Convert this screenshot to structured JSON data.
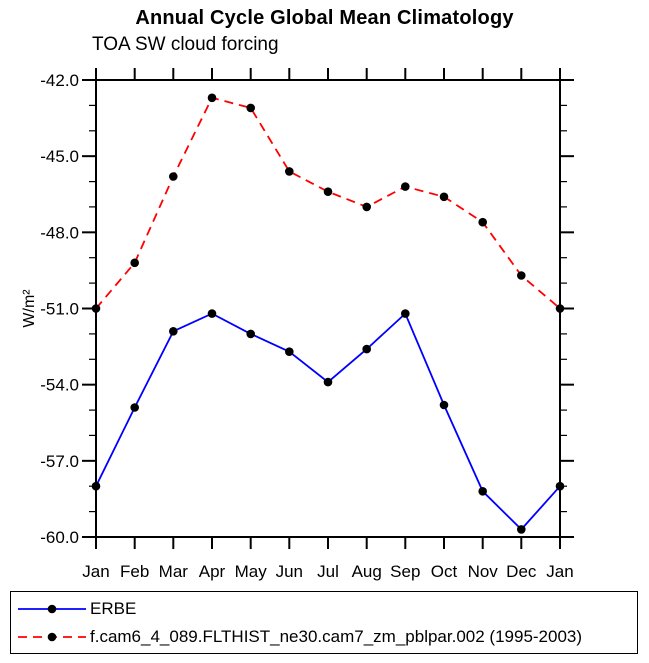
{
  "chart_data": {
    "type": "line",
    "title": "Annual Cycle Global Mean Climatology",
    "subtitle": "TOA SW cloud forcing",
    "ylabel": "W/m²",
    "xlabel": "",
    "categories": [
      "Jan",
      "Feb",
      "Mar",
      "Apr",
      "May",
      "Jun",
      "Jul",
      "Aug",
      "Sep",
      "Oct",
      "Nov",
      "Dec",
      "Jan"
    ],
    "ylim": [
      -60.0,
      -42.0
    ],
    "ytick_major": 3.0,
    "ytick_minor": 1.0,
    "ytick_labels": [
      "-42.0",
      "-45.0",
      "-48.0",
      "-51.0",
      "-54.0",
      "-57.0",
      "-60.0"
    ],
    "grid": false,
    "legend_position": "bottom",
    "colors": {
      "erbe": "#0000ff",
      "model": "#ff0000",
      "marker": "#000000",
      "axis": "#000000"
    },
    "series": [
      {
        "name": "ERBE",
        "color": "#0000ff",
        "style": "solid",
        "marker": "circle",
        "marker_color": "#000000",
        "values": [
          -58.0,
          -54.9,
          -51.9,
          -51.2,
          -52.0,
          -52.7,
          -53.9,
          -52.6,
          -51.2,
          -54.8,
          -58.2,
          -59.7,
          -58.0
        ]
      },
      {
        "name": "f.cam6_4_089.FLTHIST_ne30.cam7_zm_pblpar.002 (1995-2003)",
        "color": "#ff0000",
        "style": "dashed",
        "marker": "circle",
        "marker_color": "#000000",
        "values": [
          -51.0,
          -49.2,
          -45.8,
          -42.7,
          -43.1,
          -45.6,
          -46.4,
          -47.0,
          -46.2,
          -46.6,
          -47.6,
          -49.7,
          -51.0
        ]
      }
    ]
  }
}
